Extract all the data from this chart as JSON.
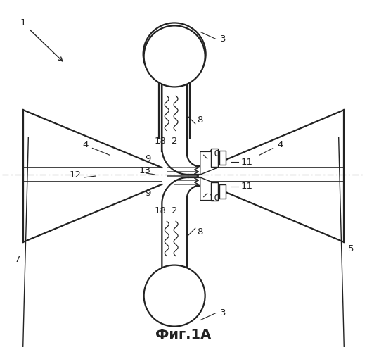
{
  "title": "Фиг.1A",
  "background_color": "#ffffff",
  "line_color": "#222222",
  "lw_main": 1.6,
  "lw_thin": 1.0,
  "lw_med": 1.2
}
